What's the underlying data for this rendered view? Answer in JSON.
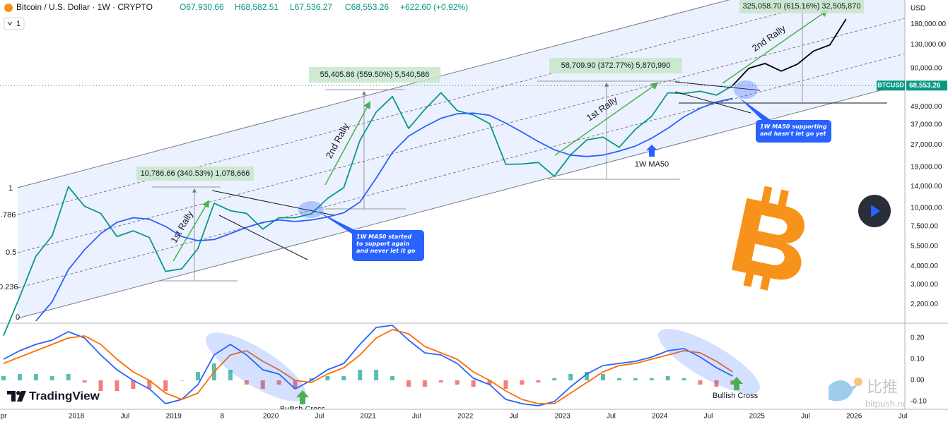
{
  "chart_data": [
    {
      "type": "line",
      "title": "Bitcoin / U.S. Dollar · 1W · CRYPTO",
      "ohlc": [
        "O67,930.66",
        "H68,582.51",
        "L67,536.27",
        "C68,553.26"
      ],
      "change": "+622.60 (+0.92%)",
      "y_label": "USD",
      "log_scale": true,
      "x": [
        "2017-04",
        "2017-06",
        "2017-08",
        "2017-10",
        "2017-12",
        "2018-02",
        "2018-04",
        "2018-06",
        "2018-08",
        "2018-10",
        "2018-12",
        "2019-02",
        "2019-04",
        "2019-06",
        "2019-08",
        "2019-10",
        "2019-12",
        "2020-02",
        "2020-04",
        "2020-06",
        "2020-08",
        "2020-10",
        "2020-12",
        "2021-02",
        "2021-04",
        "2021-06",
        "2021-08",
        "2021-10",
        "2021-12",
        "2022-02",
        "2022-04",
        "2022-06",
        "2022-08",
        "2022-10",
        "2022-12",
        "2023-02",
        "2023-04",
        "2023-06",
        "2023-08",
        "2023-10",
        "2023-12",
        "2024-02",
        "2024-04",
        "2024-06",
        "2024-08",
        "2024-10",
        "2024-12",
        "2025-02",
        "2025-04",
        "2025-06",
        "2025-08",
        "2025-10",
        "2025-12"
      ],
      "xlim": [
        "2017-04",
        "2026-07"
      ],
      "xticks": [
        {
          "value": "2017-04",
          "label": "pr"
        },
        {
          "value": "2018-01",
          "label": "2018"
        },
        {
          "value": "2018-07",
          "label": "Jul"
        },
        {
          "value": "2019-01",
          "label": "2019"
        },
        {
          "value": "2019-07",
          "label": "8"
        },
        {
          "value": "2020-01",
          "label": "2020"
        },
        {
          "value": "2020-07",
          "label": "Jul"
        },
        {
          "value": "2021-01",
          "label": "2021"
        },
        {
          "value": "2021-07",
          "label": "Jul"
        },
        {
          "value": "2022-01",
          "label": "2022"
        },
        {
          "value": "2022-07",
          "label": "Jul"
        },
        {
          "value": "2023-01",
          "label": "2023"
        },
        {
          "value": "2023-07",
          "label": "Jul"
        },
        {
          "value": "2024-01",
          "label": "2024"
        },
        {
          "value": "2024-07",
          "label": "Jul"
        },
        {
          "value": "2025-01",
          "label": "2025"
        },
        {
          "value": "2025-07",
          "label": "Jul"
        },
        {
          "value": "2026-01",
          "label": "2026"
        },
        {
          "value": "2026-07",
          "label": "Jul"
        }
      ],
      "ylim": [
        1640,
        263000
      ],
      "yticks": [
        {
          "value": 180000,
          "label": "180,000.00"
        },
        {
          "value": 130000,
          "label": "130,000.00"
        },
        {
          "value": 90000,
          "label": "90,000.00"
        },
        {
          "value": 49000,
          "label": "49,000.00"
        },
        {
          "value": 37000,
          "label": "37,000.00"
        },
        {
          "value": 27000,
          "label": "27,000.00"
        },
        {
          "value": 19000,
          "label": "19,000.00"
        },
        {
          "value": 14000,
          "label": "14,000.00"
        },
        {
          "value": 10000,
          "label": "10,000.00"
        },
        {
          "value": 7500,
          "label": "7,500.00"
        },
        {
          "value": 5500,
          "label": "5,500.00"
        },
        {
          "value": 4000,
          "label": "4,000.00"
        },
        {
          "value": 3000,
          "label": "3,000.00"
        },
        {
          "value": 2200,
          "label": "2,200.00"
        }
      ],
      "last_value": {
        "value": 68553.26,
        "label": "68,553.26"
      },
      "series": [
        {
          "name": "BTCUSD",
          "color": "#089981",
          "values": [
            1350,
            2480,
            4700,
            6470,
            14000,
            10300,
            9200,
            6400,
            7000,
            6300,
            3700,
            3850,
            5300,
            10800,
            9600,
            9200,
            7200,
            8600,
            8600,
            9150,
            11650,
            13800,
            29000,
            45200,
            57700,
            35000,
            47100,
            61300,
            46300,
            43200,
            37700,
            19900,
            20000,
            20500,
            16500,
            23100,
            29200,
            30500,
            26000,
            34500,
            42300,
            61200,
            60600,
            62700,
            59000,
            68553.26,
            null,
            null,
            null,
            null,
            null,
            null,
            null
          ]
        },
        {
          "name": "1W MA50",
          "color": "#2962ff",
          "values": [
            null,
            null,
            1700,
            2300,
            3800,
            5200,
            6700,
            8000,
            8600,
            8400,
            7500,
            6400,
            6000,
            6100,
            6700,
            7400,
            8000,
            8300,
            8100,
            8300,
            8700,
            9300,
            11000,
            16000,
            24000,
            31000,
            36000,
            41000,
            44000,
            44500,
            43000,
            38000,
            33000,
            28500,
            25000,
            23000,
            22500,
            23000,
            24500,
            26500,
            30000,
            35000,
            42000,
            48000,
            53000,
            56000,
            null,
            null,
            null,
            null,
            null,
            null,
            null
          ]
        },
        {
          "color": "#000000",
          "values": [
            null,
            null,
            null,
            null,
            null,
            null,
            null,
            null,
            null,
            null,
            null,
            null,
            null,
            null,
            null,
            null,
            null,
            null,
            null,
            null,
            null,
            null,
            null,
            null,
            null,
            null,
            null,
            null,
            null,
            null,
            null,
            null,
            null,
            null,
            null,
            null,
            null,
            null,
            null,
            null,
            null,
            null,
            null,
            null,
            null,
            68553.26,
            90000,
            97000,
            86000,
            96000,
            118000,
            130000,
            195000
          ]
        }
      ]
    },
    {
      "type": "line",
      "x": [
        "2017-04",
        "2017-06",
        "2017-08",
        "2017-10",
        "2017-12",
        "2018-02",
        "2018-04",
        "2018-06",
        "2018-08",
        "2018-10",
        "2018-12",
        "2019-02",
        "2019-04",
        "2019-06",
        "2019-08",
        "2019-10",
        "2019-12",
        "2020-02",
        "2020-04",
        "2020-06",
        "2020-08",
        "2020-10",
        "2020-12",
        "2021-02",
        "2021-04",
        "2021-06",
        "2021-08",
        "2021-10",
        "2021-12",
        "2022-02",
        "2022-04",
        "2022-06",
        "2022-08",
        "2022-10",
        "2022-12",
        "2023-02",
        "2023-04",
        "2023-06",
        "2023-08",
        "2023-10",
        "2023-12",
        "2024-02",
        "2024-04",
        "2024-06",
        "2024-08",
        "2024-10"
      ],
      "xlim": [
        "2017-04",
        "2026-07"
      ],
      "ylim": [
        -0.13,
        0.27
      ],
      "yticks": [
        {
          "value": 0.2,
          "label": "0.20"
        },
        {
          "value": 0.1,
          "label": "0.10"
        },
        {
          "value": 0,
          "label": "0.00"
        },
        {
          "value": -0.1,
          "label": "-0.10"
        }
      ],
      "series": [
        {
          "type": "bar",
          "color": "#26a69a",
          "negative_color": "#ef5350",
          "values": [
            0.02,
            0.03,
            0.03,
            0.02,
            0.03,
            -0.01,
            -0.05,
            -0.05,
            -0.04,
            -0.04,
            -0.05,
            0.0,
            0.04,
            0.08,
            0.05,
            -0.02,
            -0.04,
            -0.02,
            -0.04,
            0.01,
            0.02,
            0.02,
            0.05,
            0.05,
            0.02,
            -0.03,
            -0.03,
            -0.01,
            -0.02,
            -0.03,
            -0.02,
            -0.04,
            -0.02,
            -0.01,
            0.01,
            0.03,
            0.04,
            0.03,
            0.01,
            0.01,
            0.01,
            0.02,
            0.01,
            -0.02,
            -0.03,
            -0.02
          ]
        },
        {
          "color": "#2962ff",
          "values": [
            0.1,
            0.14,
            0.17,
            0.19,
            0.23,
            0.2,
            0.12,
            0.05,
            0.0,
            -0.04,
            -0.11,
            -0.09,
            -0.02,
            0.12,
            0.17,
            0.12,
            0.05,
            0.03,
            -0.04,
            0.0,
            0.05,
            0.08,
            0.17,
            0.25,
            0.26,
            0.19,
            0.13,
            0.12,
            0.08,
            0.01,
            -0.02,
            -0.09,
            -0.11,
            -0.12,
            -0.1,
            -0.03,
            0.03,
            0.07,
            0.08,
            0.09,
            0.11,
            0.14,
            0.15,
            0.11,
            0.06,
            0.02
          ]
        },
        {
          "color": "#ff6d00",
          "values": [
            0.08,
            0.11,
            0.14,
            0.17,
            0.2,
            0.21,
            0.17,
            0.1,
            0.04,
            0.0,
            -0.06,
            -0.09,
            -0.06,
            0.04,
            0.12,
            0.14,
            0.09,
            0.05,
            0.0,
            -0.01,
            0.03,
            0.06,
            0.12,
            0.2,
            0.24,
            0.22,
            0.16,
            0.13,
            0.1,
            0.04,
            0.0,
            -0.05,
            -0.09,
            -0.11,
            -0.11,
            -0.06,
            -0.01,
            0.04,
            0.07,
            0.08,
            0.1,
            0.12,
            0.14,
            0.13,
            0.09,
            0.04
          ]
        }
      ]
    }
  ],
  "toolbar": {
    "interval_count": "1"
  },
  "annotations": {
    "measurements": [
      "10,786.66 (340.53%) 1,078,666",
      "55,405.86 (559.50%) 5,540,586",
      "58,709.90 (372.77%) 5,870,990",
      "325,058.70 (615.16%) 32,505,870"
    ],
    "rallies": [
      "1st Rally",
      "2nd Rally",
      "1st Rally",
      "2nd Rally"
    ],
    "callouts": [
      "1W MA50 started to support again and never let it go",
      "1W MA50 supporting and hasn't let go yet"
    ],
    "crosses": [
      "Bullish Cross",
      "Bullish Cross"
    ],
    "fib_levels": [
      "1",
      ".786",
      "0.5",
      "0.236",
      "0"
    ]
  },
  "branding": {
    "logo": "TradingView",
    "watermark": "比推",
    "watermark_url": "bitpush.news"
  }
}
